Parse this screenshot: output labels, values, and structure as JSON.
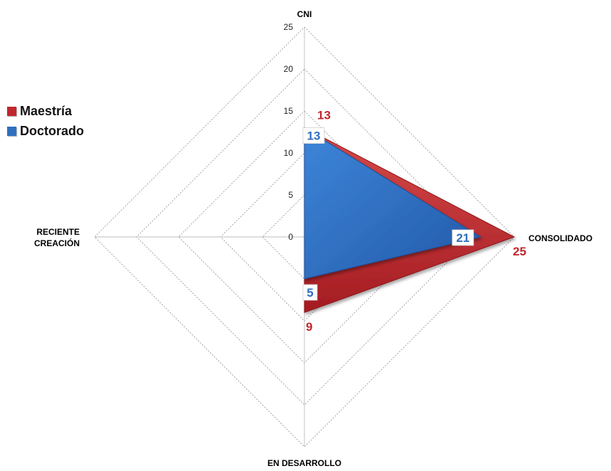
{
  "chart_data": {
    "type": "radar",
    "axes": [
      "CNI",
      "CONSOLIDADO",
      "EN DESARROLLO",
      "RECIENTE CREACIÓN"
    ],
    "axis_labels": {
      "top": "CNI",
      "right": "CONSOLIDADO",
      "bottom": "EN DESARROLLO",
      "left": [
        "RECIENTE",
        "CREACIÓN"
      ]
    },
    "ticks": [
      "0",
      "5",
      "10",
      "15",
      "20",
      "25"
    ],
    "rmax": 25,
    "grid": true,
    "legend_position": "left",
    "series": [
      {
        "name": "Maestría",
        "color": "#c0272d",
        "values": [
          13,
          25,
          9,
          0
        ],
        "data_labels": [
          "13",
          "25",
          "9",
          ""
        ]
      },
      {
        "name": "Doctorado",
        "color": "#2e6fc0",
        "values": [
          13,
          21,
          5,
          0
        ],
        "data_labels": [
          "13",
          "21",
          "5",
          ""
        ]
      }
    ]
  }
}
